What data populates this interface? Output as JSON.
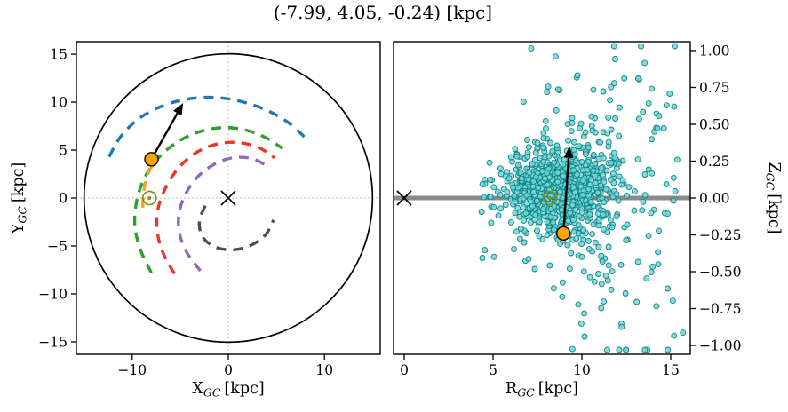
{
  "title": "(-7.99, 4.05, -0.24) [kpc]",
  "colors": {
    "frame": "#000000",
    "zero_line": "#999999",
    "plane_line": "#8a8a8a",
    "scatter_fill": "#6fd8d2",
    "scatter_edge": "#15828c",
    "object_fill": "#ffa500",
    "object_edge": "#000000",
    "sun": "#8b8b1a",
    "arrow": "#000000",
    "marker_x": "#000000"
  },
  "chart_data": [
    {
      "id": "galactic-xy",
      "type": "line",
      "xlabel": {
        "base": "X",
        "sub": "GC",
        "unit": "[kpc]"
      },
      "ylabel": {
        "base": "Y",
        "sub": "GC",
        "unit": "[kpc]"
      },
      "xlim": [
        -15.8,
        15.8
      ],
      "ylim": [
        -16.3,
        16.3
      ],
      "xticks": [
        -10,
        0,
        10
      ],
      "xtick_labels": [
        "−10",
        "0",
        "10"
      ],
      "yticks": [
        15,
        10,
        5,
        0,
        -5,
        -10,
        -15
      ],
      "ytick_labels": [
        "15",
        "10",
        "5",
        "0",
        "−5",
        "−10",
        "−15"
      ],
      "zero_lines": true,
      "boundary_circle": {
        "cx": 0,
        "cy": 0,
        "r": 15
      },
      "spiral_arms": [
        {
          "name": "blue-arm",
          "color": "#1f77b4",
          "points": [
            [
              -12.4,
              4.3
            ],
            [
              -11.2,
              6.4
            ],
            [
              -9.4,
              8.2
            ],
            [
              -7.1,
              9.5
            ],
            [
              -4.4,
              10.3
            ],
            [
              -1.6,
              10.5
            ],
            [
              1.2,
              10.1
            ],
            [
              3.9,
              9.2
            ],
            [
              6.2,
              7.9
            ],
            [
              8.0,
              6.3
            ]
          ]
        },
        {
          "name": "green-arm",
          "color": "#2ca02c",
          "points": [
            [
              -8.0,
              -7.8
            ],
            [
              -9.1,
              -5.5
            ],
            [
              -9.7,
              -3.1
            ],
            [
              -9.6,
              -0.7
            ],
            [
              -8.9,
              1.7
            ],
            [
              -7.6,
              3.8
            ],
            [
              -5.8,
              5.5
            ],
            [
              -3.6,
              6.7
            ],
            [
              -1.2,
              7.3
            ],
            [
              1.3,
              7.2
            ],
            [
              3.7,
              6.4
            ],
            [
              5.6,
              5.2
            ]
          ]
        },
        {
          "name": "red-arm",
          "color": "#ee3524",
          "points": [
            [
              -5.6,
              -7.9
            ],
            [
              -6.8,
              -5.7
            ],
            [
              -7.4,
              -3.4
            ],
            [
              -7.3,
              -1.1
            ],
            [
              -6.5,
              1.1
            ],
            [
              -5.2,
              3.1
            ],
            [
              -3.4,
              4.7
            ],
            [
              -1.3,
              5.6
            ],
            [
              0.9,
              5.8
            ],
            [
              3.1,
              5.3
            ],
            [
              4.8,
              4.2
            ]
          ]
        },
        {
          "name": "purple-arm",
          "color": "#9467bd",
          "points": [
            [
              -2.9,
              -7.6
            ],
            [
              -4.3,
              -5.7
            ],
            [
              -5.1,
              -3.6
            ],
            [
              -5.1,
              -1.5
            ],
            [
              -4.4,
              0.5
            ],
            [
              -3.2,
              2.2
            ],
            [
              -1.5,
              3.5
            ],
            [
              0.5,
              4.2
            ],
            [
              2.5,
              4.1
            ],
            [
              4.1,
              3.3
            ]
          ]
        },
        {
          "name": "gray-arm",
          "color": "#4f4f4f",
          "points": [
            [
              -2.4,
              -0.8
            ],
            [
              -3.0,
              -2.4
            ],
            [
              -2.7,
              -4.0
            ],
            [
              -1.4,
              -5.1
            ],
            [
              0.5,
              -5.4
            ],
            [
              2.4,
              -4.9
            ],
            [
              3.9,
              -3.8
            ],
            [
              4.7,
              -2.3
            ]
          ]
        },
        {
          "name": "local-arm-orange",
          "color": "#f4a427",
          "points": [
            [
              -8.9,
              -1.0
            ],
            [
              -8.8,
              0.7
            ],
            [
              -8.4,
              2.4
            ],
            [
              -7.6,
              3.9
            ]
          ]
        }
      ],
      "galactic_center": {
        "x": 0,
        "y": 0
      },
      "sun": {
        "x": -8.2,
        "y": 0
      },
      "object": {
        "x": -7.99,
        "y": 4.05
      },
      "arrow": {
        "from": [
          -7.99,
          4.05
        ],
        "to": [
          -4.7,
          9.9
        ]
      }
    },
    {
      "id": "galactic-rz",
      "type": "scatter",
      "xlabel": {
        "base": "R",
        "sub": "GC",
        "unit": "[kpc]"
      },
      "ylabel": {
        "base": "Z",
        "sub": "GC",
        "unit": "[kpc]"
      },
      "xlim": [
        -0.6,
        16.1
      ],
      "ylim": [
        -1.06,
        1.06
      ],
      "xticks": [
        0,
        5,
        10,
        15
      ],
      "xtick_labels": [
        "0",
        "5",
        "10",
        "15"
      ],
      "yticks": [
        1,
        0.75,
        0.5,
        0.25,
        0,
        -0.25,
        -0.5,
        -0.75,
        -1
      ],
      "ytick_labels": [
        "1.00",
        "0.75",
        "0.50",
        "0.25",
        "0.00",
        "−0.25",
        "−0.50",
        "−0.75",
        "−1.00"
      ],
      "y_axis_side": "right",
      "plane_line_y": 0,
      "galactic_center": {
        "x": 0,
        "y": 0
      },
      "sun": {
        "x": 8.2,
        "y": 0
      },
      "object": {
        "x": 8.96,
        "y": -0.24
      },
      "arrow": {
        "from": [
          8.96,
          -0.24
        ],
        "to": [
          9.3,
          0.35
        ]
      },
      "scatter": {
        "n": 950,
        "seed": 20,
        "core_frac": 0.72,
        "core_r_mean": 8.6,
        "core_r_sigma": 1.5,
        "core_z_mean": 0.05,
        "core_z_sigma": 0.2,
        "halo_r_mean": 10.4,
        "halo_r_sigma": 2.7,
        "halo_z_sigma": 0.55,
        "r_min": 4.2,
        "r_max": 15.7,
        "z_clip": 1.03,
        "flare_min": 0.35,
        "flare_slope": 0.08
      }
    }
  ]
}
